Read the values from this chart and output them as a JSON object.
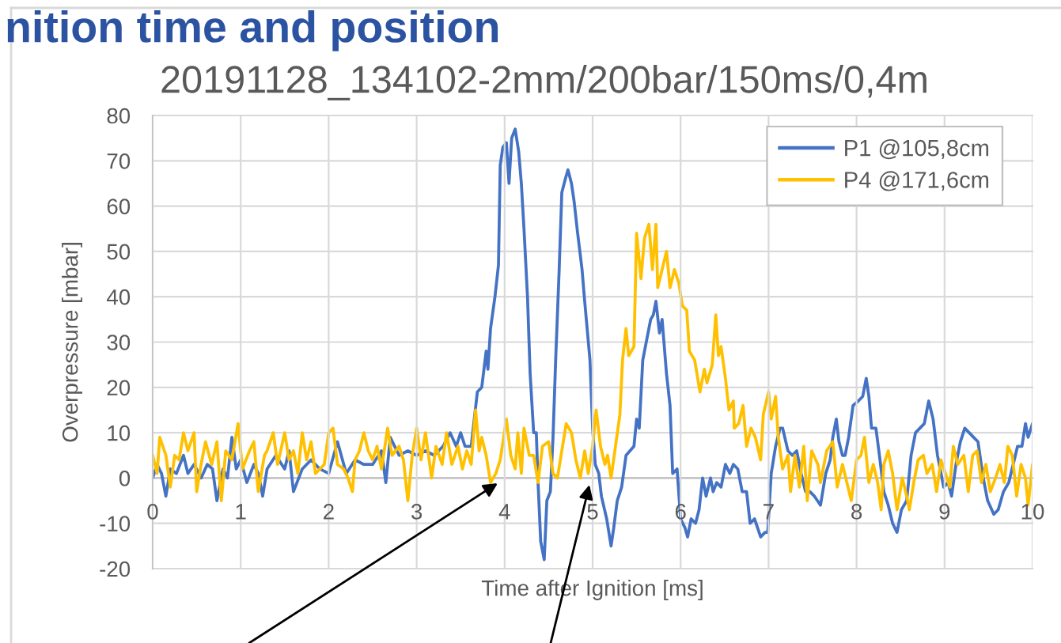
{
  "chart_data": {
    "type": "line",
    "title": "nition time and position",
    "subtitle": "20191128_134102-2mm/200bar/150ms/0,4m",
    "xlabel": "Time after Ignition [ms]",
    "ylabel": "Overpressure [mbar]",
    "xlim": [
      0,
      10
    ],
    "xticks": [
      0,
      1,
      2,
      3,
      4,
      5,
      6,
      7,
      8,
      9,
      10
    ],
    "ylim": [
      -20,
      80
    ],
    "yticks": [
      -20,
      -10,
      0,
      10,
      20,
      30,
      40,
      50,
      60,
      70,
      80
    ],
    "grid": true,
    "legend": "top right",
    "series": [
      {
        "name": "P1 @105,8cm",
        "color": "#4472c4",
        "x": [
          0.0,
          0.05,
          0.1,
          0.15,
          0.2,
          0.27,
          0.35,
          0.4,
          0.47,
          0.55,
          0.62,
          0.68,
          0.73,
          0.8,
          0.85,
          0.9,
          0.95,
          1.0,
          1.07,
          1.15,
          1.2,
          1.25,
          1.3,
          1.4,
          1.5,
          1.55,
          1.6,
          1.7,
          1.8,
          1.9,
          2.0,
          2.1,
          2.2,
          2.3,
          2.4,
          2.5,
          2.6,
          2.65,
          2.7,
          2.8,
          2.9,
          3.0,
          3.1,
          3.2,
          3.3,
          3.38,
          3.45,
          3.5,
          3.55,
          3.62,
          3.69,
          3.74,
          3.79,
          3.81,
          3.84,
          3.89,
          3.93,
          3.95,
          3.98,
          4.02,
          4.05,
          4.08,
          4.12,
          4.16,
          4.19,
          4.22,
          4.26,
          4.29,
          4.33,
          4.36,
          4.38,
          4.41,
          4.45,
          4.48,
          4.52,
          4.55,
          4.58,
          4.62,
          4.65,
          4.69,
          4.72,
          4.76,
          4.79,
          4.83,
          4.88,
          4.91,
          4.97,
          5.0,
          5.03,
          5.07,
          5.1,
          5.16,
          5.21,
          5.24,
          5.28,
          5.33,
          5.38,
          5.47,
          5.5,
          5.53,
          5.57,
          5.6,
          5.66,
          5.69,
          5.72,
          5.76,
          5.79,
          5.84,
          5.88,
          5.91,
          5.96,
          6.0,
          6.05,
          6.08,
          6.12,
          6.17,
          6.21,
          6.25,
          6.29,
          6.34,
          6.37,
          6.41,
          6.46,
          6.51,
          6.56,
          6.6,
          6.65,
          6.7,
          6.75,
          6.79,
          6.84,
          6.91,
          6.96,
          6.99,
          7.03,
          7.08,
          7.13,
          7.16,
          7.22,
          7.27,
          7.32,
          7.37,
          7.42,
          7.47,
          7.52,
          7.59,
          7.65,
          7.7,
          7.73,
          7.77,
          7.8,
          7.84,
          7.87,
          7.91,
          7.96,
          8.02,
          8.07,
          8.11,
          8.14,
          8.17,
          8.22,
          8.26,
          8.31,
          8.36,
          8.41,
          8.46,
          8.51,
          8.57,
          8.62,
          8.67,
          8.72,
          8.77,
          8.82,
          8.87,
          8.92,
          8.96,
          8.99,
          9.04,
          9.08,
          9.13,
          9.18,
          9.23,
          9.28,
          9.33,
          9.38,
          9.44,
          9.49,
          9.56,
          9.61,
          9.67,
          9.73,
          9.78,
          9.83,
          9.88,
          9.92,
          9.95,
          10.0
        ],
        "values": [
          0,
          3,
          1,
          -4,
          2,
          1,
          5,
          1,
          3,
          0,
          3,
          2,
          -5,
          2,
          0,
          9,
          2,
          4,
          -1,
          3,
          1,
          -4,
          2,
          5,
          2,
          6,
          -3,
          2,
          4,
          2,
          1,
          8,
          1,
          4,
          3,
          3,
          6,
          -1,
          9,
          5,
          6,
          5,
          6,
          5,
          7,
          10,
          7,
          10,
          7,
          7,
          19,
          20,
          28,
          24,
          33,
          40,
          47,
          69,
          73,
          74,
          65,
          75,
          77,
          72,
          65,
          55,
          40,
          23,
          10,
          10,
          -1,
          -14,
          -18,
          -5,
          -3,
          9,
          26,
          46,
          63,
          66,
          68,
          65,
          61,
          54,
          46,
          39,
          26,
          11,
          3,
          1,
          -4,
          -9,
          -15,
          -11,
          -5,
          -2,
          5,
          7,
          13,
          11,
          26,
          29,
          35,
          36,
          39,
          32,
          35,
          23,
          16,
          1,
          2,
          -9,
          -11,
          -13,
          -9,
          -10,
          -7,
          0,
          -4,
          0,
          -3,
          -1,
          -2,
          3,
          1,
          3,
          2,
          -3,
          -3,
          -10,
          -9,
          -13,
          -12,
          -12,
          1,
          7,
          11,
          11,
          6,
          5,
          6,
          1,
          -3,
          -3,
          -4,
          -6,
          1,
          4,
          9,
          13,
          8,
          5,
          5,
          9,
          16,
          17,
          18,
          22,
          18,
          11,
          11,
          5,
          -3,
          -6,
          -10,
          -12,
          -7,
          -5,
          5,
          10,
          11,
          12,
          17,
          13,
          5,
          1,
          -2,
          -1,
          -4,
          3,
          8,
          11,
          10,
          9,
          8,
          0,
          -5,
          -8,
          -7,
          -3,
          -1,
          3,
          7,
          7,
          12,
          9,
          12
        ]
      },
      {
        "name": "P4 @171,6cm",
        "color": "#ffc000",
        "x": [
          0.0,
          0.05,
          0.08,
          0.15,
          0.2,
          0.25,
          0.3,
          0.35,
          0.4,
          0.47,
          0.5,
          0.55,
          0.6,
          0.67,
          0.73,
          0.78,
          0.83,
          0.9,
          0.97,
          1.02,
          1.1,
          1.15,
          1.2,
          1.27,
          1.3,
          1.37,
          1.42,
          1.5,
          1.55,
          1.6,
          1.65,
          1.7,
          1.75,
          1.8,
          1.85,
          1.95,
          2.0,
          2.05,
          2.1,
          2.17,
          2.22,
          2.27,
          2.3,
          2.35,
          2.4,
          2.45,
          2.5,
          2.55,
          2.6,
          2.67,
          2.72,
          2.8,
          2.85,
          2.9,
          2.95,
          3.0,
          3.05,
          3.1,
          3.17,
          3.22,
          3.29,
          3.34,
          3.4,
          3.47,
          3.52,
          3.57,
          3.62,
          3.67,
          3.71,
          3.74,
          3.79,
          3.84,
          3.9,
          3.95,
          4.02,
          4.07,
          4.12,
          4.15,
          4.19,
          4.22,
          4.28,
          4.33,
          4.38,
          4.43,
          4.5,
          4.55,
          4.6,
          4.65,
          4.7,
          4.76,
          4.81,
          4.86,
          4.91,
          4.95,
          5.0,
          5.04,
          5.09,
          5.14,
          5.17,
          5.21,
          5.26,
          5.31,
          5.34,
          5.38,
          5.41,
          5.47,
          5.5,
          5.55,
          5.59,
          5.64,
          5.68,
          5.72,
          5.74,
          5.79,
          5.84,
          5.88,
          5.93,
          5.98,
          6.02,
          6.07,
          6.1,
          6.16,
          6.22,
          6.27,
          6.3,
          6.36,
          6.4,
          6.43,
          6.46,
          6.51,
          6.55,
          6.6,
          6.61,
          6.66,
          6.71,
          6.75,
          6.8,
          6.85,
          6.91,
          6.94,
          7.0,
          7.03,
          7.08,
          7.11,
          7.16,
          7.22,
          7.25,
          7.3,
          7.35,
          7.4,
          7.44,
          7.49,
          7.56,
          7.59,
          7.66,
          7.73,
          7.78,
          7.84,
          7.89,
          7.94,
          8.0,
          8.05,
          8.09,
          8.14,
          8.19,
          8.24,
          8.28,
          8.31,
          8.36,
          8.41,
          8.46,
          8.52,
          8.57,
          8.6,
          8.65,
          8.7,
          8.76,
          8.8,
          8.86,
          8.91,
          8.96,
          9.01,
          9.06,
          9.1,
          9.15,
          9.22,
          9.27,
          9.32,
          9.37,
          9.42,
          9.47,
          9.52,
          9.58,
          9.63,
          9.68,
          9.72,
          9.77,
          9.82,
          9.87,
          9.92,
          9.95,
          10.0
        ],
        "values": [
          5,
          1,
          9,
          5,
          -2,
          5,
          4,
          10,
          6,
          10,
          -3,
          3,
          8,
          3,
          8,
          -5,
          6,
          4,
          12,
          2,
          6,
          8,
          -3,
          5,
          6,
          10,
          3,
          10,
          4,
          6,
          1,
          10,
          4,
          8,
          1,
          3,
          10,
          11,
          3,
          2,
          0,
          -3,
          4,
          6,
          10,
          6,
          4,
          7,
          2,
          11,
          5,
          7,
          4,
          -5,
          5,
          11,
          4,
          10,
          0,
          7,
          3,
          10,
          3,
          7,
          2,
          6,
          3,
          15,
          6,
          9,
          5,
          -1,
          1,
          4,
          13,
          5,
          2,
          10,
          1,
          11,
          5,
          5,
          -1,
          7,
          8,
          1,
          0,
          6,
          12,
          10,
          4,
          0,
          6,
          1,
          7,
          15,
          7,
          3,
          5,
          0,
          7,
          14,
          26,
          33,
          27,
          29,
          54,
          44,
          53,
          56,
          46,
          56,
          42,
          46,
          50,
          42,
          46,
          43,
          38,
          37,
          28,
          26,
          19,
          24,
          21,
          25,
          36,
          27,
          29,
          22,
          15,
          17,
          11,
          12,
          16,
          7,
          11,
          9,
          4,
          14,
          19,
          13,
          18,
          9,
          2,
          5,
          -3,
          5,
          -2,
          7,
          -5,
          6,
          3,
          -1,
          6,
          8,
          -2,
          3,
          -1,
          -5,
          4,
          5,
          9,
          -1,
          3,
          -1,
          -7,
          3,
          6,
          1,
          -7,
          0,
          -4,
          -7,
          -1,
          4,
          5,
          1,
          3,
          -3,
          4,
          1,
          -2,
          7,
          3,
          5,
          -3,
          5,
          6,
          -1,
          3,
          -3,
          0,
          3,
          -1,
          7,
          5,
          -4,
          3,
          0,
          -6,
          3
        ]
      }
    ]
  }
}
